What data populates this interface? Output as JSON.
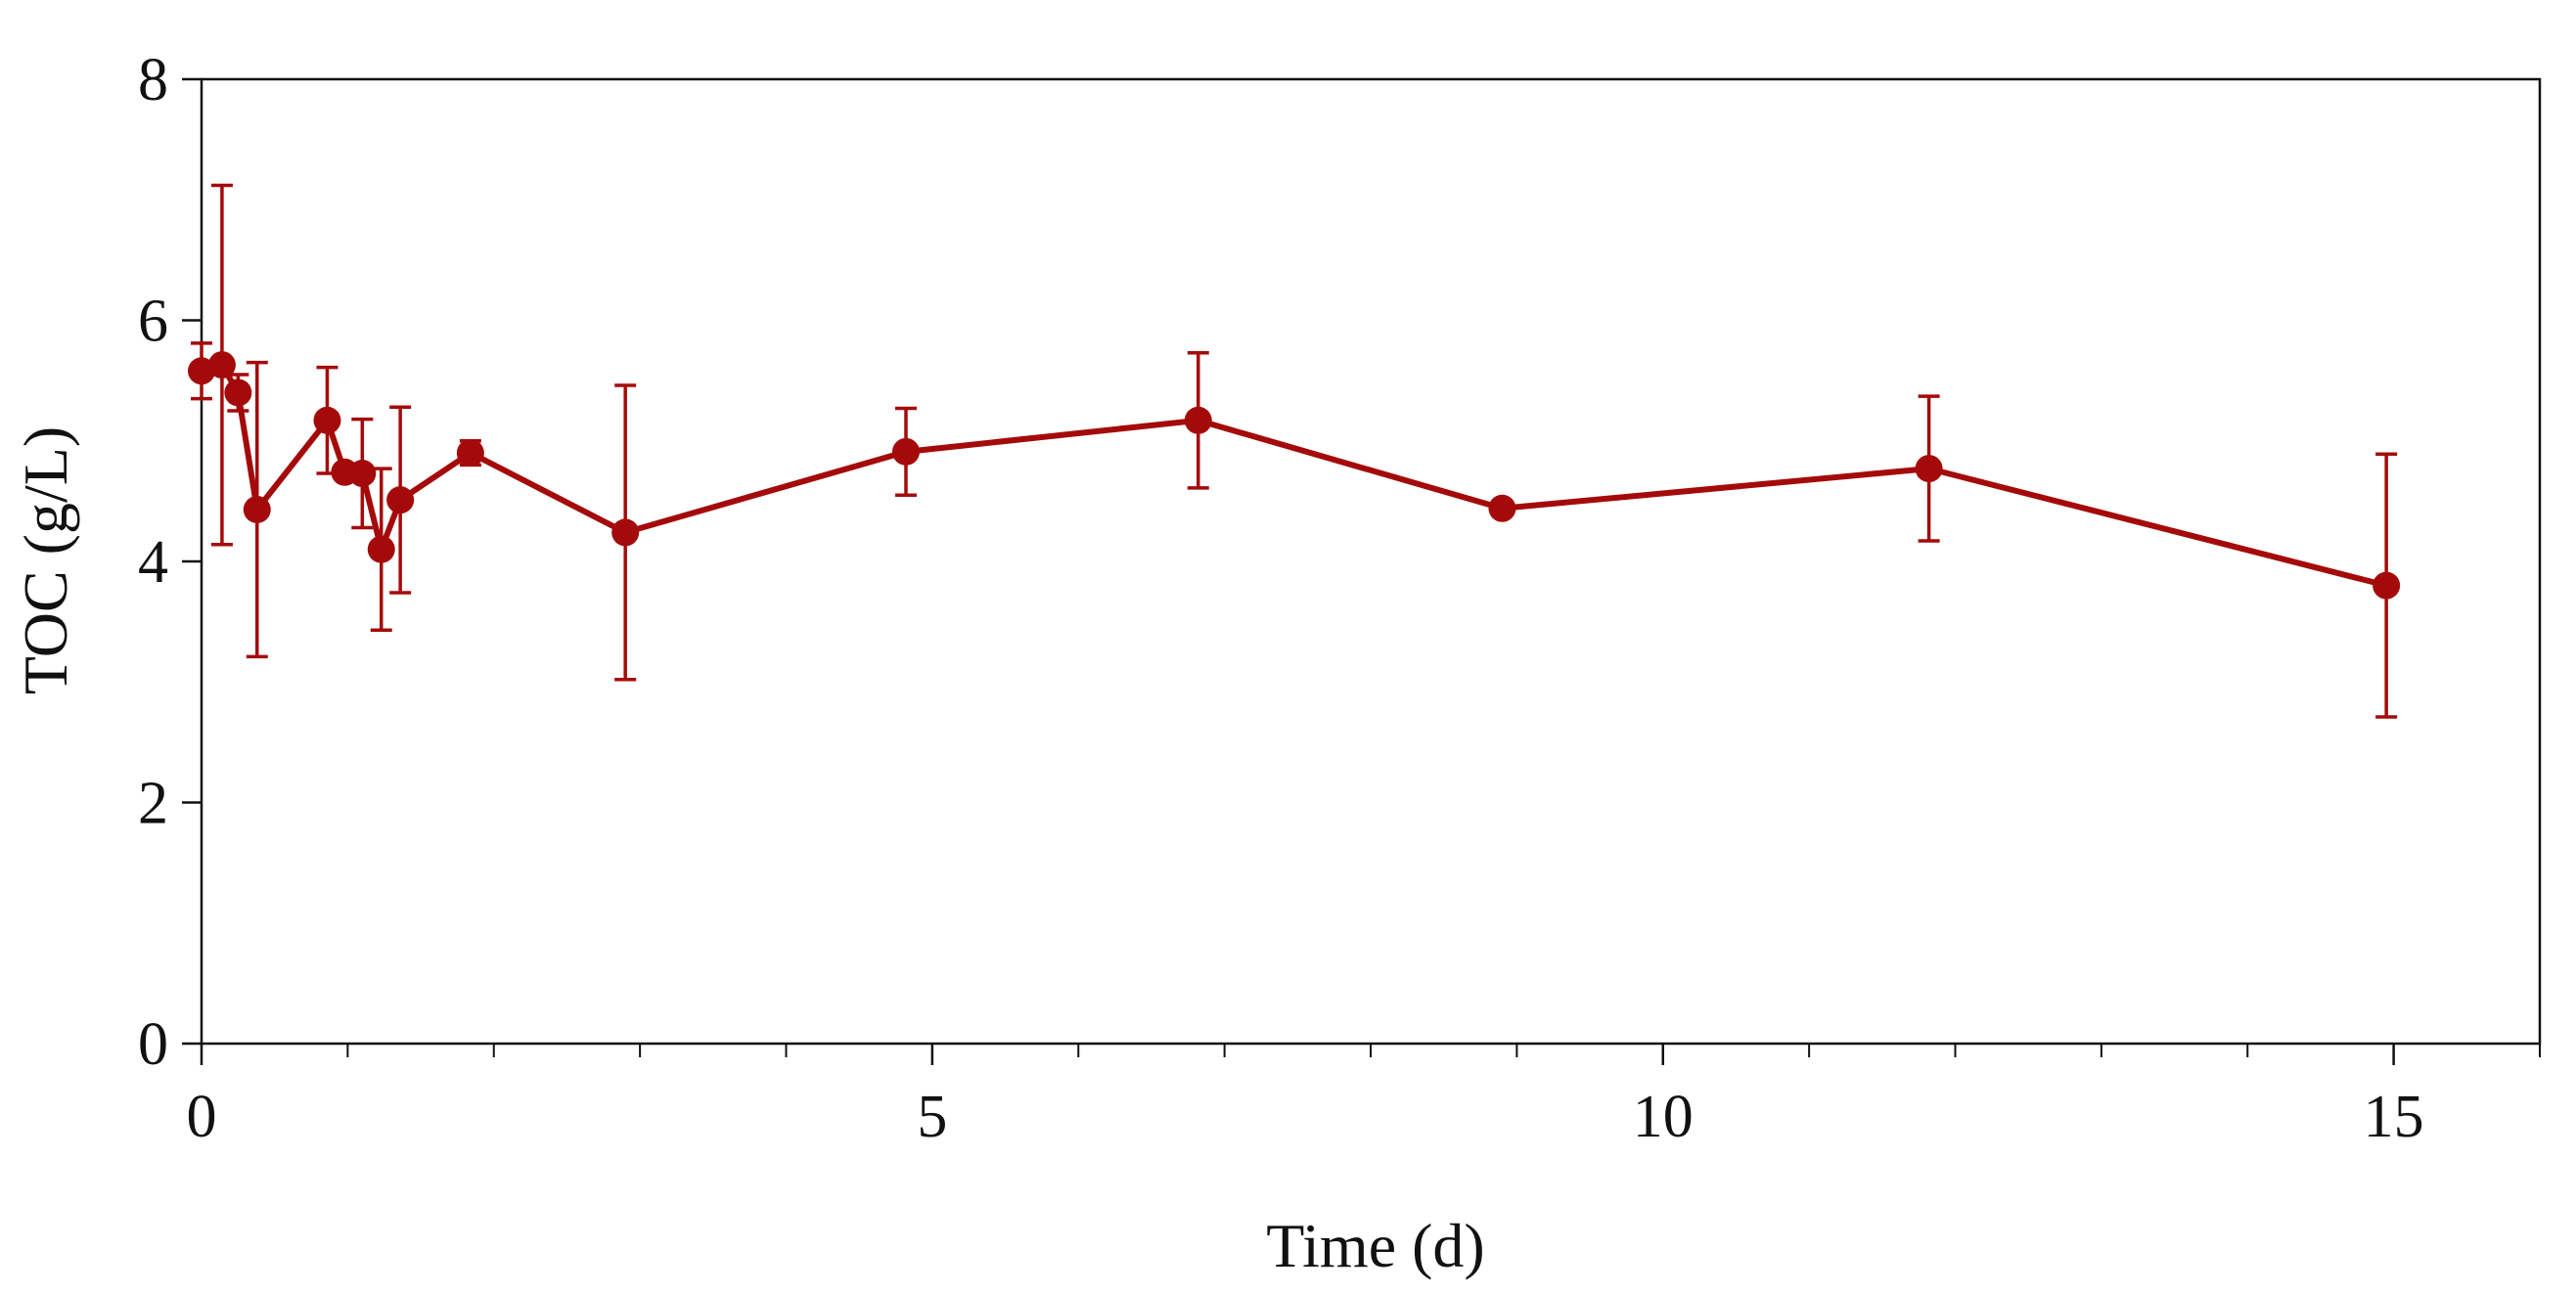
{
  "chart_data": {
    "type": "line",
    "title": "",
    "xlabel": "Time (d)",
    "ylabel": "TOC (g/L)",
    "xlim": [
      0,
      16
    ],
    "ylim": [
      0,
      8
    ],
    "x_ticks": [
      0,
      5,
      10,
      15
    ],
    "x_tick_labels": [
      "0",
      "5",
      "10",
      "15"
    ],
    "x_minor_ticks": [
      1,
      2,
      3,
      4,
      6,
      7,
      8,
      9,
      11,
      12,
      13,
      14,
      16
    ],
    "y_ticks": [
      0,
      2,
      4,
      6,
      8
    ],
    "y_tick_labels": [
      "0",
      "2",
      "4",
      "6",
      "8"
    ],
    "grid": false,
    "legend": "none",
    "color": "#a50a0a",
    "series": [
      {
        "name": "TOC",
        "x": [
          0,
          0.14,
          0.25,
          0.38,
          0.86,
          0.98,
          1.1,
          1.23,
          1.36,
          1.84,
          2.9,
          4.82,
          6.82,
          8.9,
          11.82,
          14.95
        ],
        "y": [
          5.58,
          5.63,
          5.4,
          4.43,
          5.17,
          4.74,
          4.73,
          4.1,
          4.51,
          4.9,
          4.24,
          4.91,
          5.17,
          4.44,
          4.77,
          3.8
        ],
        "error": [
          0.23,
          1.49,
          0.15,
          1.22,
          0.44,
          0.0,
          0.45,
          0.67,
          0.77,
          0.1,
          1.22,
          0.36,
          0.56,
          0.0,
          0.6,
          1.09
        ]
      }
    ]
  }
}
